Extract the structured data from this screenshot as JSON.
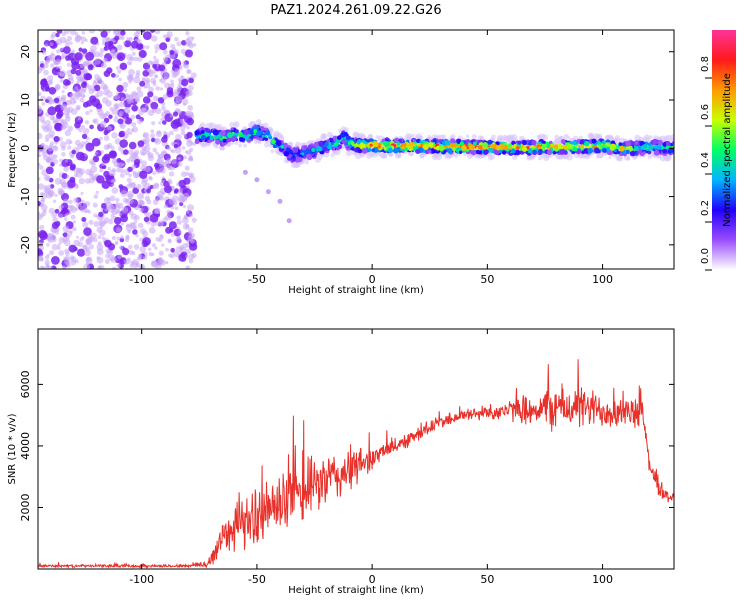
{
  "title": "PAZ1.2024.261.09.22.G26",
  "chart_data": [
    {
      "type": "heatmap",
      "xlabel": "Height of straight line (km)",
      "ylabel": "Frequency (Hz)",
      "xlim": [
        -145,
        131
      ],
      "ylim": [
        -25,
        24.5
      ],
      "x_ticks": [
        -100,
        -50,
        0,
        50,
        100
      ],
      "y_ticks": [
        -20,
        -10,
        0,
        10,
        20
      ],
      "colorbar": {
        "label": "Normalized spectral amplitude",
        "range": [
          0,
          1
        ],
        "ticks": [
          "0.0",
          "0.2",
          "0.4",
          "0.6",
          "0.8"
        ],
        "tick_values": [
          0,
          0.2,
          0.4,
          0.6,
          0.8
        ],
        "colors": [
          "#ffffff",
          "#9a4dff",
          "#2200ff",
          "#00b4ff",
          "#00ff66",
          "#c8ff00",
          "#ff9a00",
          "#ff1a1a",
          "#ff3399"
        ]
      },
      "noise_region": {
        "x": [
          -145,
          -77
        ],
        "freq": [
          -25,
          24.5
        ],
        "amplitude": 0.15
      },
      "signal_track": {
        "x": [
          -76,
          -70,
          -65,
          -60,
          -55,
          -50,
          -45,
          -42,
          -38,
          -35,
          -30,
          -25,
          -20,
          -15,
          -12,
          -10,
          -5,
          0,
          20,
          50,
          80,
          100,
          110,
          120,
          131
        ],
        "freq": [
          2.5,
          2.8,
          2.0,
          3.0,
          2.5,
          3.5,
          2.5,
          1.0,
          0.0,
          -1.5,
          -1.0,
          -0.5,
          0.5,
          1.0,
          2.5,
          1.0,
          0.5,
          0.5,
          0.5,
          0.2,
          0.2,
          0.5,
          -0.2,
          0.3,
          0.0
        ],
        "amplitude": [
          0.45,
          0.55,
          0.5,
          0.55,
          0.5,
          0.5,
          0.5,
          0.45,
          0.4,
          0.35,
          0.35,
          0.4,
          0.45,
          0.5,
          0.5,
          0.6,
          0.7,
          0.85,
          0.85,
          0.8,
          0.8,
          0.7,
          0.6,
          0.5,
          0.45
        ]
      },
      "secondary_trace": {
        "x": [
          -55,
          -50,
          -45,
          -40,
          -36
        ],
        "freq": [
          -5,
          -6.5,
          -9,
          -11,
          -15
        ],
        "amplitude": 0.2
      }
    },
    {
      "type": "line",
      "xlabel": "Height of straight line (km)",
      "ylabel": "SNR (10 * v/v)",
      "xlim": [
        -145,
        131
      ],
      "ylim": [
        0,
        7800
      ],
      "x_ticks": [
        -100,
        -50,
        0,
        50,
        100
      ],
      "y_ticks": [
        2000,
        4000,
        6000
      ],
      "color": "#e8302a",
      "envelope": {
        "x": [
          -145,
          -80,
          -72,
          -68,
          -65,
          -60,
          -55,
          -50,
          -45,
          -40,
          -35,
          -30,
          -25,
          -20,
          -15,
          -10,
          -5,
          0,
          10,
          20,
          30,
          40,
          50,
          60,
          70,
          80,
          90,
          100,
          110,
          118,
          120,
          125,
          131
        ],
        "mean": [
          100,
          100,
          150,
          500,
          1100,
          1400,
          1500,
          1700,
          1900,
          2100,
          2300,
          2500,
          2700,
          2900,
          3000,
          3200,
          3400,
          3600,
          4000,
          4400,
          4800,
          5000,
          5100,
          5150,
          5200,
          5250,
          5250,
          5150,
          5100,
          5000,
          3500,
          2500,
          2300
        ],
        "amp": [
          50,
          60,
          150,
          500,
          800,
          900,
          1000,
          1100,
          1100,
          1200,
          1200,
          1200,
          1100,
          1000,
          1000,
          900,
          700,
          400,
          300,
          300,
          250,
          250,
          300,
          400,
          600,
          900,
          800,
          700,
          600,
          500,
          350,
          300,
          300
        ]
      }
    }
  ]
}
